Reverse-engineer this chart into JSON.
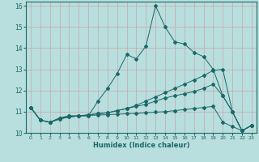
{
  "xlabel": "Humidex (Indice chaleur)",
  "xlim": [
    -0.5,
    23.5
  ],
  "ylim": [
    10,
    16.2
  ],
  "yticks": [
    10,
    11,
    12,
    13,
    14,
    15,
    16
  ],
  "xticks": [
    0,
    1,
    2,
    3,
    4,
    5,
    6,
    7,
    8,
    9,
    10,
    11,
    12,
    13,
    14,
    15,
    16,
    17,
    18,
    19,
    20,
    21,
    22,
    23
  ],
  "bg_color": "#b8dede",
  "grid_color": "#c8a8a8",
  "line_color": "#1a6868",
  "lines": [
    [
      11.2,
      10.6,
      10.5,
      10.7,
      10.8,
      10.8,
      10.8,
      11.5,
      12.1,
      12.8,
      13.7,
      13.5,
      14.1,
      16.0,
      15.0,
      14.3,
      14.2,
      13.8,
      13.6,
      13.0,
      11.75,
      11.0,
      10.1,
      10.35
    ],
    [
      11.2,
      10.6,
      10.5,
      10.7,
      10.8,
      10.8,
      10.85,
      10.9,
      10.95,
      11.05,
      11.15,
      11.3,
      11.5,
      11.7,
      11.9,
      12.1,
      12.3,
      12.5,
      12.7,
      12.95,
      13.0,
      11.0,
      10.1,
      10.35
    ],
    [
      11.2,
      10.6,
      10.5,
      10.65,
      10.75,
      10.8,
      10.85,
      10.9,
      10.95,
      11.05,
      11.15,
      11.25,
      11.35,
      11.5,
      11.65,
      11.75,
      11.85,
      11.95,
      12.1,
      12.3,
      11.75,
      11.0,
      10.1,
      10.35
    ],
    [
      11.2,
      10.6,
      10.5,
      10.65,
      10.75,
      10.8,
      10.82,
      10.84,
      10.86,
      10.88,
      10.9,
      10.92,
      10.95,
      10.98,
      11.0,
      11.05,
      11.1,
      11.15,
      11.2,
      11.25,
      10.5,
      10.3,
      10.1,
      10.35
    ]
  ]
}
